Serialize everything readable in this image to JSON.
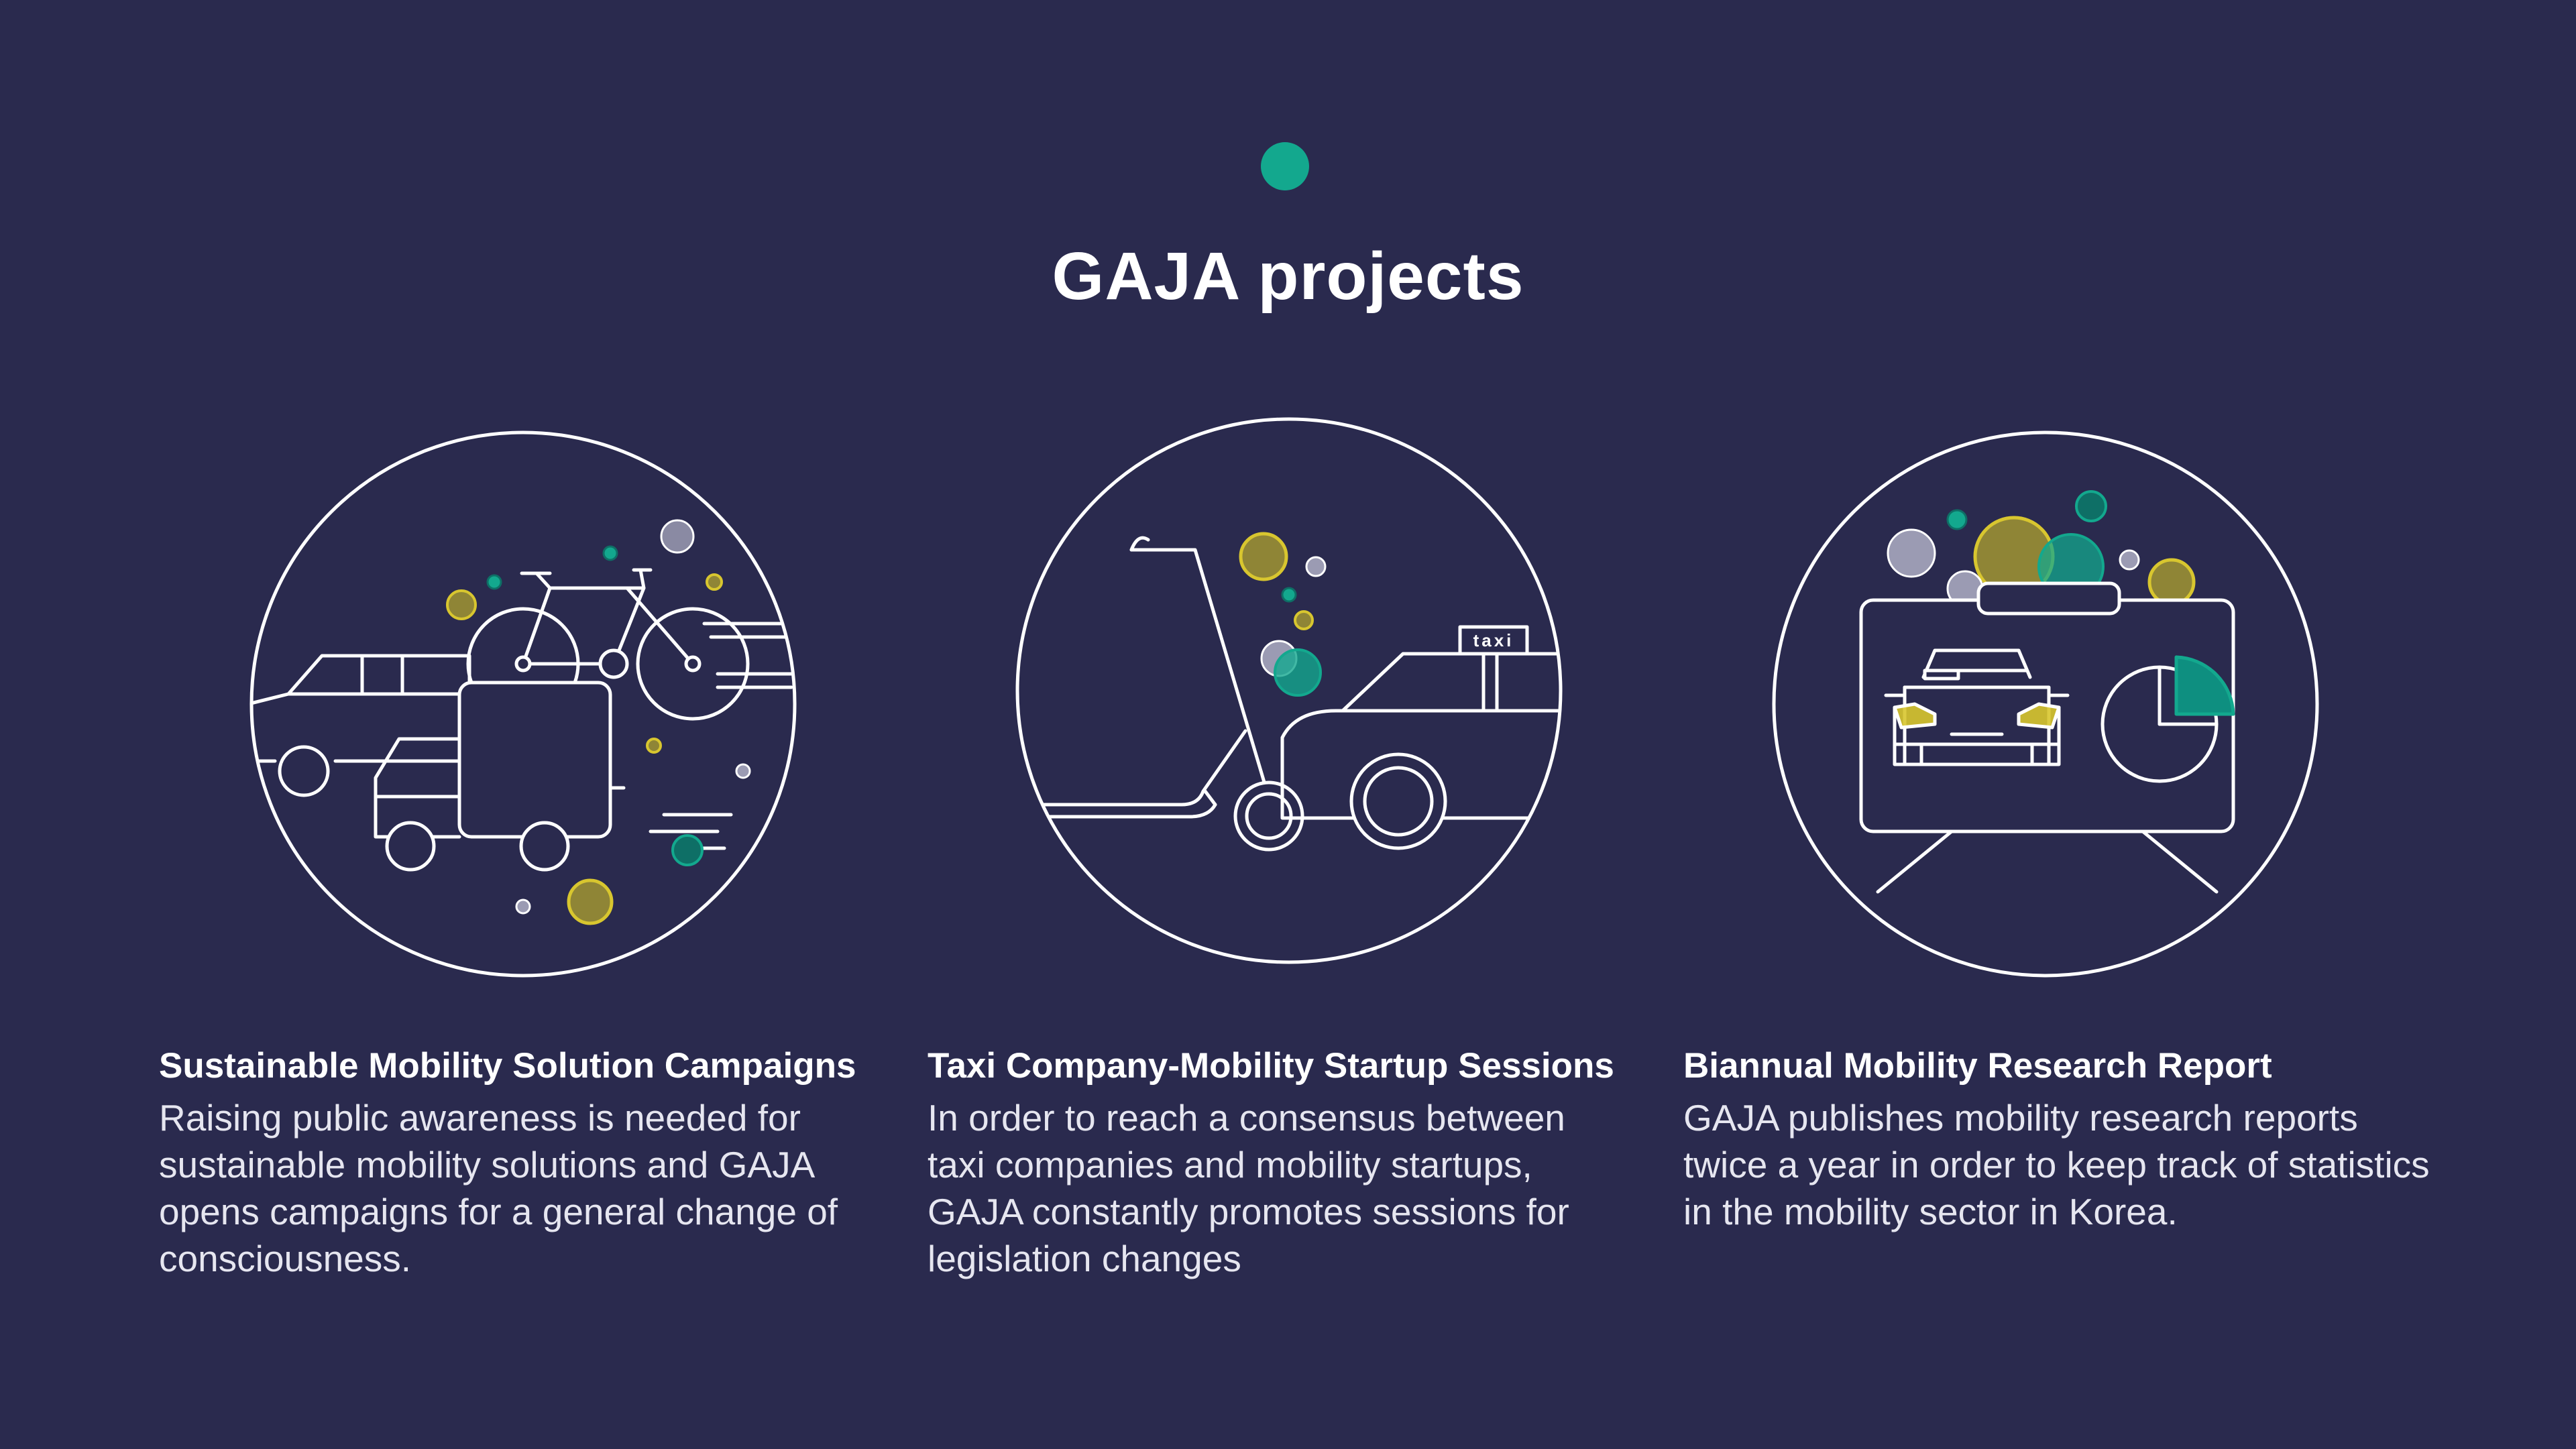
{
  "page": {
    "title": "GAJA projects",
    "background_color": "#2a2a4e",
    "accent_green": "#13a88e",
    "accent_yellow": "#d8c62f",
    "accent_olive": "#8f8536",
    "accent_grey": "#9b9bb3"
  },
  "projects": [
    {
      "icon": "mobility-campaign-illustration",
      "heading": "Sustainable Mobility Solution Campaigns",
      "body": "Raising public awareness is needed for sustainable mobility solutions and GAJA opens campaigns for a general change of consciousness."
    },
    {
      "icon": "taxi-startup-illustration",
      "sign_text": "taxi",
      "heading": "Taxi Company-Mobility Startup Sessions",
      "body": "In order to reach a consensus between taxi companies and mobility startups, GAJA constantly promotes sessions for legislation changes"
    },
    {
      "icon": "research-report-illustration",
      "heading": "Biannual Mobility Research Report",
      "body": "GAJA publishes mobility research reports twice a year in order to keep track of statistics in the mobility sector in Korea."
    }
  ]
}
